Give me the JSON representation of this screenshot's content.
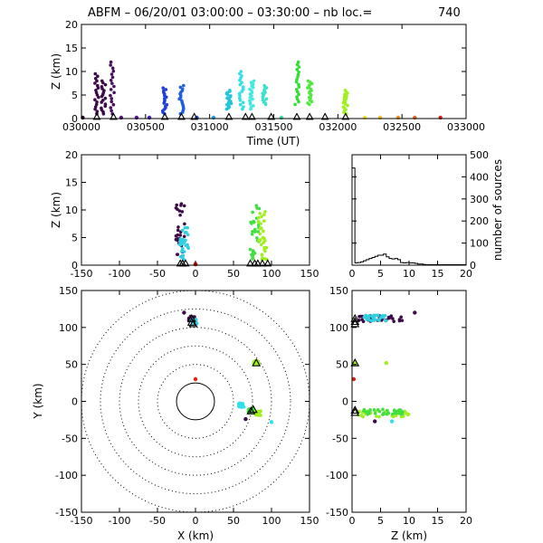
{
  "title": "ABFM – 06/20/01 03:00:00 – 03:30:00 – nb loc.=",
  "count": "740",
  "chart_data": [
    {
      "id": "time-height",
      "type": "scatter",
      "xlabel": "Time (UT)",
      "ylabel": "Z (km)",
      "xlim": [
        30000,
        33000
      ],
      "ylim": [
        0,
        20
      ],
      "xticks": [
        30000,
        30500,
        31000,
        31500,
        32000,
        32500,
        33000
      ],
      "xtick_labels": [
        "030000",
        "030500",
        "031000",
        "031500",
        "032000",
        "032500",
        "033000"
      ],
      "yticks": [
        0,
        5,
        10,
        15,
        20
      ],
      "clusters": [
        {
          "x": 30120,
          "zmin": 1,
          "zmax": 9.5,
          "color": "#3d0a4a"
        },
        {
          "x": 30170,
          "zmin": 1,
          "zmax": 8,
          "color": "#3d0a4a"
        },
        {
          "x": 30240,
          "zmin": 1,
          "zmax": 12,
          "color": "#4a1060"
        },
        {
          "x": 30650,
          "zmin": 1,
          "zmax": 6.5,
          "color": "#1f3fd9"
        },
        {
          "x": 30780,
          "zmin": 1,
          "zmax": 7,
          "color": "#1f5fe0"
        },
        {
          "x": 31150,
          "zmin": 2,
          "zmax": 6,
          "color": "#20c6d8"
        },
        {
          "x": 31250,
          "zmin": 2,
          "zmax": 10,
          "color": "#30e0e8"
        },
        {
          "x": 31330,
          "zmin": 2,
          "zmax": 8,
          "color": "#40e8e0"
        },
        {
          "x": 31430,
          "zmin": 3,
          "zmax": 7,
          "color": "#40e0d0"
        },
        {
          "x": 31680,
          "zmin": 3,
          "zmax": 12,
          "color": "#30e030"
        },
        {
          "x": 31780,
          "zmin": 3,
          "zmax": 8,
          "color": "#50e840"
        },
        {
          "x": 32060,
          "zmin": 1,
          "zmax": 6,
          "color": "#a0f020"
        }
      ],
      "ground_points": [
        {
          "x": 30010,
          "color": "#2a0030"
        },
        {
          "x": 30310,
          "color": "#5a1080"
        },
        {
          "x": 30430,
          "color": "#5a10a0"
        },
        {
          "x": 30530,
          "color": "#4a20c0"
        },
        {
          "x": 30900,
          "color": "#2050e0"
        },
        {
          "x": 31030,
          "color": "#20a0e0"
        },
        {
          "x": 31560,
          "color": "#30e0a0"
        },
        {
          "x": 32210,
          "color": "#f0e020"
        },
        {
          "x": 32330,
          "color": "#f0c020"
        },
        {
          "x": 32470,
          "color": "#f09020"
        },
        {
          "x": 32600,
          "color": "#f06020"
        },
        {
          "x": 32800,
          "color": "#e02010"
        }
      ],
      "triangles_x": [
        30120,
        30250,
        30650,
        30780,
        30880,
        31150,
        31280,
        31330,
        31480,
        31680,
        31780,
        31900,
        32060
      ]
    },
    {
      "id": "x-height",
      "type": "scatter",
      "xlabel": "",
      "ylabel": "Z (km)",
      "xlim": [
        -150,
        150
      ],
      "ylim": [
        0,
        20
      ],
      "xticks": [
        -150,
        -100,
        -50,
        0,
        50,
        100,
        150
      ],
      "yticks": [
        0,
        5,
        10,
        15,
        20
      ],
      "clusters": [
        {
          "x": -20,
          "zmin": 1,
          "zmax": 12,
          "color": "#3d0a4a"
        },
        {
          "x": -15,
          "zmin": 1,
          "zmax": 7,
          "color": "#30d0e0"
        },
        {
          "x": 78,
          "zmin": 1,
          "zmax": 12,
          "color": "#40e040"
        },
        {
          "x": 88,
          "zmin": 1,
          "zmax": 10,
          "color": "#a0f020"
        }
      ],
      "ground_points": [
        {
          "x": 0,
          "color": "#e02010"
        }
      ],
      "triangles_x": [
        -20,
        -17,
        -13,
        72,
        78,
        82,
        88,
        95
      ]
    },
    {
      "id": "height-histogram",
      "type": "line",
      "xlabel": "",
      "ylabel": "number of sources",
      "xlim": [
        0,
        20
      ],
      "ylim": [
        0,
        500
      ],
      "xticks": [
        0,
        5,
        10,
        15,
        20
      ],
      "yticks": [
        0,
        100,
        200,
        300,
        400,
        500
      ],
      "x": [
        0,
        0.5,
        1,
        1.5,
        2,
        2.5,
        3,
        3.5,
        4,
        4.5,
        5,
        5.5,
        6,
        6.5,
        7,
        7.5,
        8,
        8.5,
        9,
        9.5,
        10,
        10.5,
        11,
        11.5,
        12,
        12.5,
        13,
        20
      ],
      "values": [
        440,
        10,
        12,
        15,
        20,
        25,
        30,
        35,
        40,
        45,
        45,
        50,
        38,
        30,
        28,
        30,
        25,
        12,
        10,
        12,
        10,
        10,
        8,
        5,
        5,
        3,
        2,
        0
      ]
    },
    {
      "id": "plan-view",
      "type": "scatter",
      "xlabel": "X (km)",
      "ylabel": "Y (km)",
      "xlim": [
        -150,
        150
      ],
      "ylim": [
        -150,
        150
      ],
      "xticks": [
        -150,
        -100,
        -50,
        0,
        50,
        100,
        150
      ],
      "yticks": [
        -150,
        -100,
        -50,
        0,
        50,
        100,
        150
      ],
      "range_rings_km": [
        25,
        50,
        75,
        100,
        125,
        150
      ],
      "clusters": [
        {
          "x": -5,
          "y": 112,
          "color": "#3d0a4a"
        },
        {
          "x": -2,
          "y": 108,
          "color": "#30d0e0"
        },
        {
          "x": 73,
          "y": -12,
          "color": "#40e040"
        },
        {
          "x": 82,
          "y": -16,
          "color": "#a0f020"
        },
        {
          "x": 60,
          "y": -5,
          "color": "#30e0e8"
        },
        {
          "x": 80,
          "y": 52,
          "color": "#a0f020"
        }
      ],
      "sources": [
        {
          "x": 0,
          "y": 30,
          "color": "#e02010"
        },
        {
          "x": 100,
          "y": -28,
          "color": "#30e0e8"
        },
        {
          "x": 66,
          "y": -24,
          "color": "#3d0a4a"
        },
        {
          "x": -15,
          "y": 120,
          "color": "#3d0a4a"
        }
      ],
      "triangles": [
        [
          -5,
          112
        ],
        [
          -5,
          107
        ],
        [
          -3,
          105
        ],
        [
          76,
          -11
        ],
        [
          73,
          -13
        ],
        [
          80,
          52
        ]
      ]
    },
    {
      "id": "height-y",
      "type": "scatter",
      "xlabel": "Z (km)",
      "ylabel": "",
      "xlim": [
        0,
        20
      ],
      "ylim": [
        -150,
        150
      ],
      "xticks": [
        0,
        5,
        10,
        15,
        20
      ],
      "yticks": [
        -150,
        -100,
        -50,
        0,
        50,
        100,
        150
      ],
      "clusters": [
        {
          "zmin": 1,
          "zmax": 9,
          "y": 112,
          "color": "#3d0a4a"
        },
        {
          "zmin": 2,
          "zmax": 6,
          "y": 113,
          "color": "#30d0e0"
        },
        {
          "zmin": 1,
          "zmax": 10,
          "y": -17,
          "color": "#a0f020"
        },
        {
          "zmin": 2,
          "zmax": 9,
          "y": -14,
          "color": "#40e040"
        }
      ],
      "sources": [
        {
          "z": 0.3,
          "y": 30,
          "color": "#e02010"
        },
        {
          "z": 6,
          "y": 52,
          "color": "#a0f020"
        },
        {
          "z": 11,
          "y": 120,
          "color": "#3d0a4a"
        },
        {
          "z": 4,
          "y": -27,
          "color": "#3d0a4a"
        },
        {
          "z": 7,
          "y": -27,
          "color": "#30e0e8"
        }
      ],
      "triangles": [
        [
          0.2,
          112
        ],
        [
          0.2,
          108
        ],
        [
          0.2,
          105
        ],
        [
          0.2,
          52
        ],
        [
          0.2,
          -12
        ],
        [
          0.2,
          -15
        ]
      ]
    }
  ]
}
